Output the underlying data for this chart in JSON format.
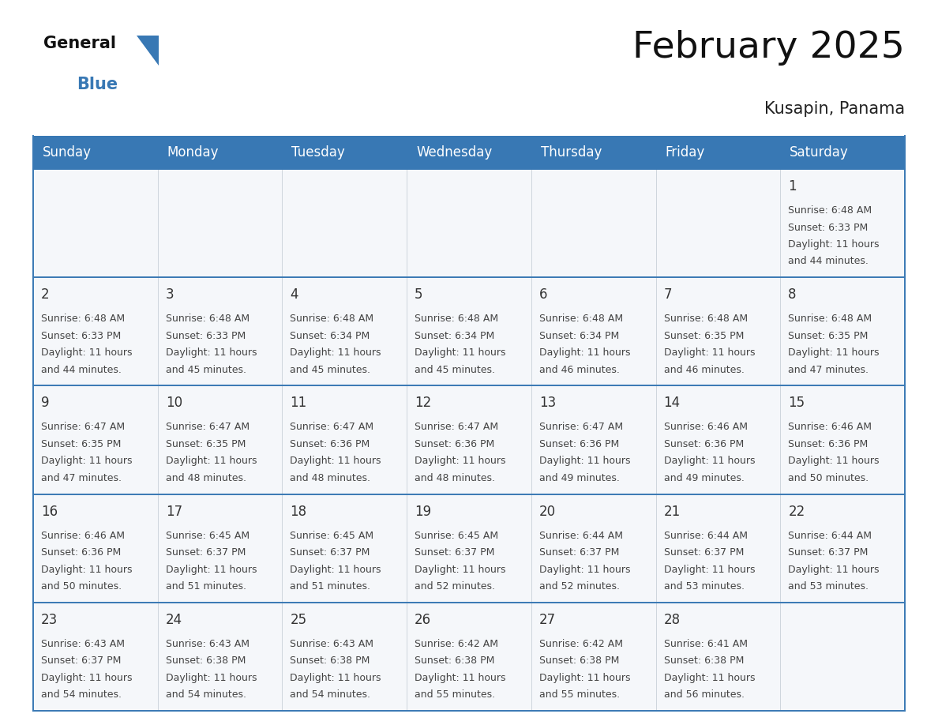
{
  "title": "February 2025",
  "subtitle": "Kusapin, Panama",
  "days_of_week": [
    "Sunday",
    "Monday",
    "Tuesday",
    "Wednesday",
    "Thursday",
    "Friday",
    "Saturday"
  ],
  "header_bg_color": "#3878b4",
  "header_text_color": "#ffffff",
  "cell_bg": "#f5f7fa",
  "day_number_color": "#333333",
  "info_text_color": "#444444",
  "divider_color": "#3878b4",
  "border_color": "#3878b4",
  "background_color": "#ffffff",
  "title_color": "#111111",
  "subtitle_color": "#222222",
  "logo_general_color": "#111111",
  "logo_blue_color": "#3878b4",
  "triangle_color": "#3878b4",
  "weeks": [
    [
      {
        "day": null,
        "sunrise": null,
        "sunset": null,
        "daylight": null
      },
      {
        "day": null,
        "sunrise": null,
        "sunset": null,
        "daylight": null
      },
      {
        "day": null,
        "sunrise": null,
        "sunset": null,
        "daylight": null
      },
      {
        "day": null,
        "sunrise": null,
        "sunset": null,
        "daylight": null
      },
      {
        "day": null,
        "sunrise": null,
        "sunset": null,
        "daylight": null
      },
      {
        "day": null,
        "sunrise": null,
        "sunset": null,
        "daylight": null
      },
      {
        "day": 1,
        "sunrise": "6:48 AM",
        "sunset": "6:33 PM",
        "daylight": "11 hours and 44 minutes."
      }
    ],
    [
      {
        "day": 2,
        "sunrise": "6:48 AM",
        "sunset": "6:33 PM",
        "daylight": "11 hours and 44 minutes."
      },
      {
        "day": 3,
        "sunrise": "6:48 AM",
        "sunset": "6:33 PM",
        "daylight": "11 hours and 45 minutes."
      },
      {
        "day": 4,
        "sunrise": "6:48 AM",
        "sunset": "6:34 PM",
        "daylight": "11 hours and 45 minutes."
      },
      {
        "day": 5,
        "sunrise": "6:48 AM",
        "sunset": "6:34 PM",
        "daylight": "11 hours and 45 minutes."
      },
      {
        "day": 6,
        "sunrise": "6:48 AM",
        "sunset": "6:34 PM",
        "daylight": "11 hours and 46 minutes."
      },
      {
        "day": 7,
        "sunrise": "6:48 AM",
        "sunset": "6:35 PM",
        "daylight": "11 hours and 46 minutes."
      },
      {
        "day": 8,
        "sunrise": "6:48 AM",
        "sunset": "6:35 PM",
        "daylight": "11 hours and 47 minutes."
      }
    ],
    [
      {
        "day": 9,
        "sunrise": "6:47 AM",
        "sunset": "6:35 PM",
        "daylight": "11 hours and 47 minutes."
      },
      {
        "day": 10,
        "sunrise": "6:47 AM",
        "sunset": "6:35 PM",
        "daylight": "11 hours and 48 minutes."
      },
      {
        "day": 11,
        "sunrise": "6:47 AM",
        "sunset": "6:36 PM",
        "daylight": "11 hours and 48 minutes."
      },
      {
        "day": 12,
        "sunrise": "6:47 AM",
        "sunset": "6:36 PM",
        "daylight": "11 hours and 48 minutes."
      },
      {
        "day": 13,
        "sunrise": "6:47 AM",
        "sunset": "6:36 PM",
        "daylight": "11 hours and 49 minutes."
      },
      {
        "day": 14,
        "sunrise": "6:46 AM",
        "sunset": "6:36 PM",
        "daylight": "11 hours and 49 minutes."
      },
      {
        "day": 15,
        "sunrise": "6:46 AM",
        "sunset": "6:36 PM",
        "daylight": "11 hours and 50 minutes."
      }
    ],
    [
      {
        "day": 16,
        "sunrise": "6:46 AM",
        "sunset": "6:36 PM",
        "daylight": "11 hours and 50 minutes."
      },
      {
        "day": 17,
        "sunrise": "6:45 AM",
        "sunset": "6:37 PM",
        "daylight": "11 hours and 51 minutes."
      },
      {
        "day": 18,
        "sunrise": "6:45 AM",
        "sunset": "6:37 PM",
        "daylight": "11 hours and 51 minutes."
      },
      {
        "day": 19,
        "sunrise": "6:45 AM",
        "sunset": "6:37 PM",
        "daylight": "11 hours and 52 minutes."
      },
      {
        "day": 20,
        "sunrise": "6:44 AM",
        "sunset": "6:37 PM",
        "daylight": "11 hours and 52 minutes."
      },
      {
        "day": 21,
        "sunrise": "6:44 AM",
        "sunset": "6:37 PM",
        "daylight": "11 hours and 53 minutes."
      },
      {
        "day": 22,
        "sunrise": "6:44 AM",
        "sunset": "6:37 PM",
        "daylight": "11 hours and 53 minutes."
      }
    ],
    [
      {
        "day": 23,
        "sunrise": "6:43 AM",
        "sunset": "6:37 PM",
        "daylight": "11 hours and 54 minutes."
      },
      {
        "day": 24,
        "sunrise": "6:43 AM",
        "sunset": "6:38 PM",
        "daylight": "11 hours and 54 minutes."
      },
      {
        "day": 25,
        "sunrise": "6:43 AM",
        "sunset": "6:38 PM",
        "daylight": "11 hours and 54 minutes."
      },
      {
        "day": 26,
        "sunrise": "6:42 AM",
        "sunset": "6:38 PM",
        "daylight": "11 hours and 55 minutes."
      },
      {
        "day": 27,
        "sunrise": "6:42 AM",
        "sunset": "6:38 PM",
        "daylight": "11 hours and 55 minutes."
      },
      {
        "day": 28,
        "sunrise": "6:41 AM",
        "sunset": "6:38 PM",
        "daylight": "11 hours and 56 minutes."
      },
      {
        "day": null,
        "sunrise": null,
        "sunset": null,
        "daylight": null
      }
    ]
  ],
  "title_fontsize": 34,
  "subtitle_fontsize": 15,
  "header_fontsize": 12,
  "day_number_fontsize": 12,
  "info_fontsize": 9,
  "logo_general_fontsize": 15,
  "logo_blue_fontsize": 15
}
